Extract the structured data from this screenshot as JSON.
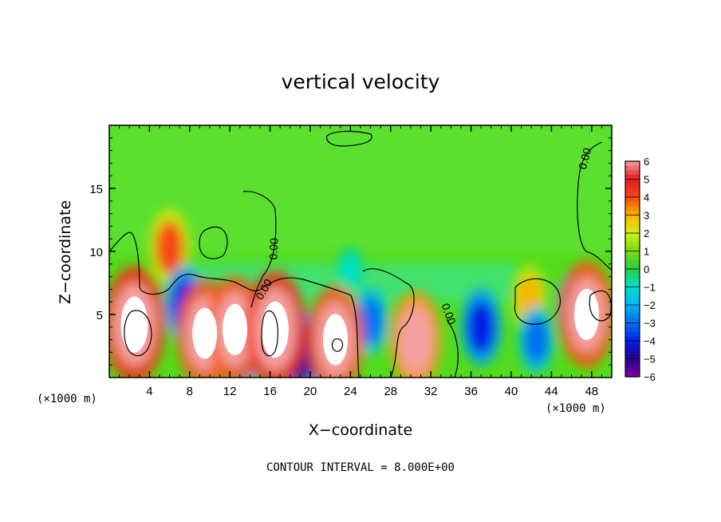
{
  "chart_data": {
    "type": "heatmap",
    "title": "vertical velocity",
    "xlabel": "X−coordinate",
    "ylabel": "Z−coordinate",
    "x_units": "(×1000 m)",
    "xlim": [
      0,
      50
    ],
    "ylim": [
      0,
      20
    ],
    "x_ticks": [
      4,
      8,
      12,
      16,
      20,
      24,
      28,
      32,
      36,
      40,
      44,
      48
    ],
    "x_tick_labels": [
      "4",
      "8",
      "12",
      "16",
      "20",
      "24",
      "28",
      "32",
      "36",
      "40",
      "44",
      "48"
    ],
    "y_ticks": [
      5,
      10,
      15
    ],
    "y_tick_labels": [
      "5",
      "10",
      "15"
    ],
    "colorbar": {
      "min": -6,
      "max": 6,
      "ticks": [
        6,
        5,
        4,
        3,
        2,
        1,
        0,
        -1,
        -2,
        -3,
        -4,
        -5,
        -6
      ],
      "tick_labels": [
        "6",
        "5",
        "4",
        "3",
        "2",
        "1",
        "0",
        "−1",
        "−2",
        "−3",
        "−4",
        "−5",
        "−6"
      ]
    },
    "contour_label": "0.00",
    "contour_interval_text": "CONTOUR INTERVAL = 8.000E+00",
    "features": [
      {
        "x": 2.5,
        "z": 4.2,
        "value": 8
      },
      {
        "x": 6.0,
        "z": 10.3,
        "value": 4
      },
      {
        "x": 7.5,
        "z": 5.8,
        "value": -4
      },
      {
        "x": 9.5,
        "z": 3.5,
        "value": 7
      },
      {
        "x": 12.5,
        "z": 3.8,
        "value": 7
      },
      {
        "x": 13.5,
        "z": 2.6,
        "value": -4
      },
      {
        "x": 16.5,
        "z": 3.8,
        "value": 8
      },
      {
        "x": 19.0,
        "z": 2.0,
        "value": -5
      },
      {
        "x": 22.5,
        "z": 3.0,
        "value": 7
      },
      {
        "x": 26.0,
        "z": 4.5,
        "value": -3
      },
      {
        "x": 30.5,
        "z": 3.0,
        "value": 6
      },
      {
        "x": 37.0,
        "z": 4.0,
        "value": -4
      },
      {
        "x": 41.8,
        "z": 6.3,
        "value": 3
      },
      {
        "x": 42.5,
        "z": 3.0,
        "value": -3
      },
      {
        "x": 47.5,
        "z": 5.0,
        "value": 7
      },
      {
        "x": 46.5,
        "z": 5.5,
        "value": -4
      },
      {
        "x": 24.0,
        "z": 8.5,
        "value": -1
      }
    ]
  }
}
